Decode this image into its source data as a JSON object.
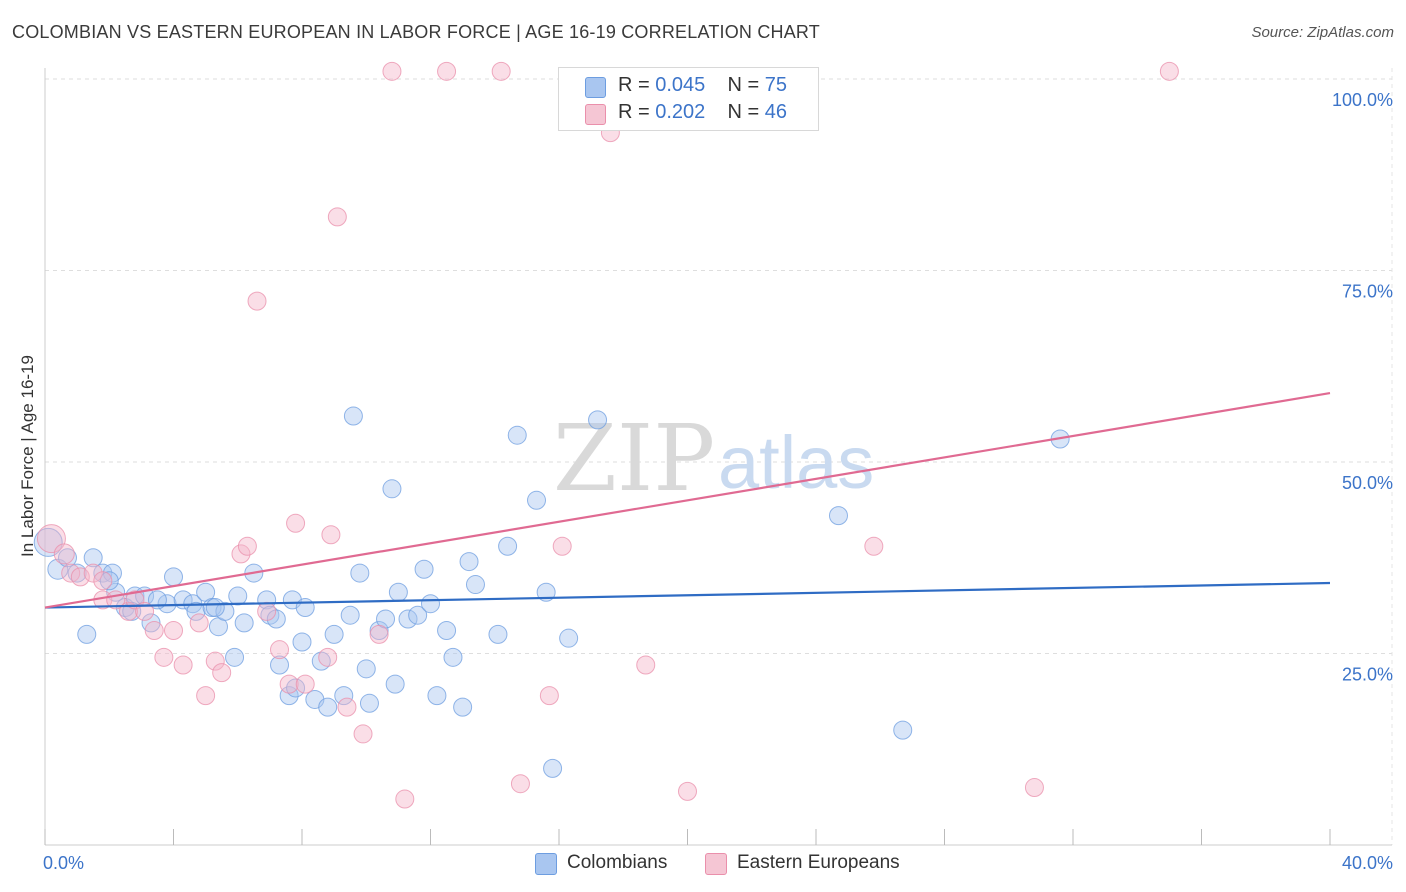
{
  "header": {
    "title": "COLOMBIAN VS EASTERN EUROPEAN IN LABOR FORCE | AGE 16-19 CORRELATION CHART",
    "source": "Source: ZipAtlas.com"
  },
  "legend": {
    "items": [
      {
        "r_label": "R =",
        "r_value": "0.045",
        "n_label": "N =",
        "n_value": "75",
        "color": "#a9c6f0"
      },
      {
        "r_label": "R =",
        "r_value": "0.202",
        "n_label": "N =",
        "n_value": "46",
        "color": "#f5b6c9"
      }
    ]
  },
  "bottom_legend": {
    "colombians": "Colombians",
    "eastern_europeans": "Eastern Europeans"
  },
  "watermark": {
    "zip": "ZIP",
    "atlas": "atlas"
  },
  "chart_data": {
    "type": "scatter",
    "title": "COLOMBIAN VS EASTERN EUROPEAN IN LABOR FORCE | AGE 16-19 CORRELATION CHART",
    "xlabel": "",
    "ylabel": "In Labor Force | Age 16-19",
    "xlim": [
      0,
      40
    ],
    "ylim": [
      0,
      102
    ],
    "x_ticks": [
      {
        "value": 0,
        "label": "0.0%"
      },
      {
        "value": 40,
        "label": "40.0%"
      }
    ],
    "y_ticks": [
      {
        "value": 25,
        "label": "25.0%"
      },
      {
        "value": 50,
        "label": "50.0%"
      },
      {
        "value": 75,
        "label": "75.0%"
      },
      {
        "value": 100,
        "label": "100.0%"
      }
    ],
    "grid": true,
    "legend_position": "top-center",
    "series": [
      {
        "name": "Colombians",
        "color": "#6d9de0",
        "fill": "#a9c6f0",
        "trend": {
          "x": [
            0,
            40
          ],
          "y": [
            31.0,
            34.2
          ],
          "color": "#2f6cc4"
        },
        "points": [
          [
            0.1,
            39.5,
            14
          ],
          [
            0.4,
            36.0,
            10
          ],
          [
            0.7,
            37.5,
            9
          ],
          [
            1.0,
            35.5,
            9
          ],
          [
            1.3,
            27.5,
            9
          ],
          [
            1.5,
            37.5,
            9
          ],
          [
            1.8,
            35.5,
            9
          ],
          [
            2.1,
            35.5,
            9
          ],
          [
            2.2,
            33.0,
            9
          ],
          [
            2.5,
            31.0,
            9
          ],
          [
            2.8,
            32.5,
            9
          ],
          [
            3.1,
            32.5,
            9
          ],
          [
            3.3,
            29.0,
            9
          ],
          [
            3.8,
            31.5,
            9
          ],
          [
            4.0,
            35.0,
            9
          ],
          [
            4.3,
            32.0,
            9
          ],
          [
            4.6,
            31.5,
            9
          ],
          [
            4.7,
            30.5,
            9
          ],
          [
            5.0,
            33.0,
            9
          ],
          [
            5.2,
            31.0,
            9
          ],
          [
            5.4,
            28.5,
            9
          ],
          [
            5.6,
            30.5,
            9
          ],
          [
            5.9,
            24.5,
            9
          ],
          [
            6.2,
            29.0,
            9
          ],
          [
            6.5,
            35.5,
            9
          ],
          [
            6.9,
            32.0,
            9
          ],
          [
            7.0,
            30.0,
            9
          ],
          [
            7.2,
            29.5,
            9
          ],
          [
            7.3,
            23.5,
            9
          ],
          [
            7.7,
            32.0,
            9
          ],
          [
            7.6,
            19.5,
            9
          ],
          [
            7.8,
            20.5,
            9
          ],
          [
            8.0,
            26.5,
            9
          ],
          [
            8.4,
            19.0,
            9
          ],
          [
            8.6,
            24.0,
            9
          ],
          [
            8.8,
            18.0,
            9
          ],
          [
            9.0,
            27.5,
            9
          ],
          [
            9.3,
            19.5,
            9
          ],
          [
            9.5,
            30.0,
            9
          ],
          [
            9.6,
            56.0,
            9
          ],
          [
            9.8,
            35.5,
            9
          ],
          [
            10.0,
            23.0,
            9
          ],
          [
            10.1,
            18.5,
            9
          ],
          [
            10.4,
            28.0,
            9
          ],
          [
            10.6,
            29.5,
            9
          ],
          [
            10.8,
            46.5,
            9
          ],
          [
            10.9,
            21.0,
            9
          ],
          [
            11.3,
            29.5,
            9
          ],
          [
            11.6,
            30.0,
            9
          ],
          [
            11.8,
            36.0,
            9
          ],
          [
            12.2,
            19.5,
            9
          ],
          [
            12.5,
            28.0,
            9
          ],
          [
            12.7,
            24.5,
            9
          ],
          [
            13.0,
            18.0,
            9
          ],
          [
            13.2,
            37.0,
            9
          ],
          [
            13.4,
            34.0,
            9
          ],
          [
            14.1,
            27.5,
            9
          ],
          [
            14.4,
            39.0,
            9
          ],
          [
            14.7,
            53.5,
            9
          ],
          [
            15.3,
            45.0,
            9
          ],
          [
            15.6,
            33.0,
            9
          ],
          [
            15.8,
            10.0,
            9
          ],
          [
            16.3,
            27.0,
            9
          ],
          [
            17.2,
            55.5,
            9
          ],
          [
            24.7,
            43.0,
            9
          ],
          [
            26.7,
            15.0,
            9
          ],
          [
            31.6,
            53.0,
            9
          ],
          [
            2.0,
            34.5,
            9
          ],
          [
            3.5,
            32.0,
            9
          ],
          [
            5.3,
            31.0,
            9
          ],
          [
            6.0,
            32.5,
            9
          ],
          [
            8.1,
            31.0,
            9
          ],
          [
            11.0,
            33.0,
            9
          ],
          [
            12.0,
            31.5,
            9
          ],
          [
            2.7,
            30.5,
            9
          ]
        ]
      },
      {
        "name": "Eastern Europeans",
        "color": "#ea8fab",
        "fill": "#f5b6c9",
        "trend": {
          "x": [
            0,
            40
          ],
          "y": [
            31.0,
            59.0
          ],
          "color": "#e06a92"
        },
        "points": [
          [
            0.2,
            40.0,
            14
          ],
          [
            0.6,
            38.0,
            10
          ],
          [
            0.8,
            35.5,
            9
          ],
          [
            1.1,
            35.0,
            9
          ],
          [
            1.5,
            35.5,
            9
          ],
          [
            1.8,
            34.5,
            9
          ],
          [
            1.8,
            32.0,
            9
          ],
          [
            2.2,
            32.0,
            9
          ],
          [
            2.6,
            30.5,
            9
          ],
          [
            2.8,
            32.0,
            9
          ],
          [
            3.1,
            30.5,
            9
          ],
          [
            3.4,
            28.0,
            9
          ],
          [
            3.7,
            24.5,
            9
          ],
          [
            4.0,
            28.0,
            9
          ],
          [
            4.3,
            23.5,
            9
          ],
          [
            4.8,
            29.0,
            9
          ],
          [
            5.0,
            19.5,
            9
          ],
          [
            5.3,
            24.0,
            9
          ],
          [
            5.5,
            22.5,
            9
          ],
          [
            6.1,
            38.0,
            9
          ],
          [
            6.3,
            39.0,
            9
          ],
          [
            6.6,
            71.0,
            9
          ],
          [
            6.9,
            30.5,
            9
          ],
          [
            7.3,
            25.5,
            9
          ],
          [
            7.6,
            21.0,
            9
          ],
          [
            7.8,
            42.0,
            9
          ],
          [
            8.1,
            21.0,
            9
          ],
          [
            8.8,
            24.5,
            9
          ],
          [
            8.9,
            40.5,
            9
          ],
          [
            9.1,
            82.0,
            9
          ],
          [
            9.4,
            18.0,
            9
          ],
          [
            9.9,
            14.5,
            9
          ],
          [
            10.4,
            27.5,
            9
          ],
          [
            10.8,
            101.0,
            9
          ],
          [
            11.2,
            6.0,
            9
          ],
          [
            12.5,
            101.0,
            9
          ],
          [
            14.2,
            101.0,
            9
          ],
          [
            14.8,
            8.0,
            9
          ],
          [
            15.7,
            19.5,
            9
          ],
          [
            16.1,
            39.0,
            9
          ],
          [
            17.6,
            93.0,
            9
          ],
          [
            18.7,
            23.5,
            9
          ],
          [
            20.0,
            7.0,
            9
          ],
          [
            25.8,
            39.0,
            9
          ],
          [
            30.8,
            7.5,
            9
          ],
          [
            35.0,
            101.0,
            9
          ]
        ]
      }
    ]
  }
}
